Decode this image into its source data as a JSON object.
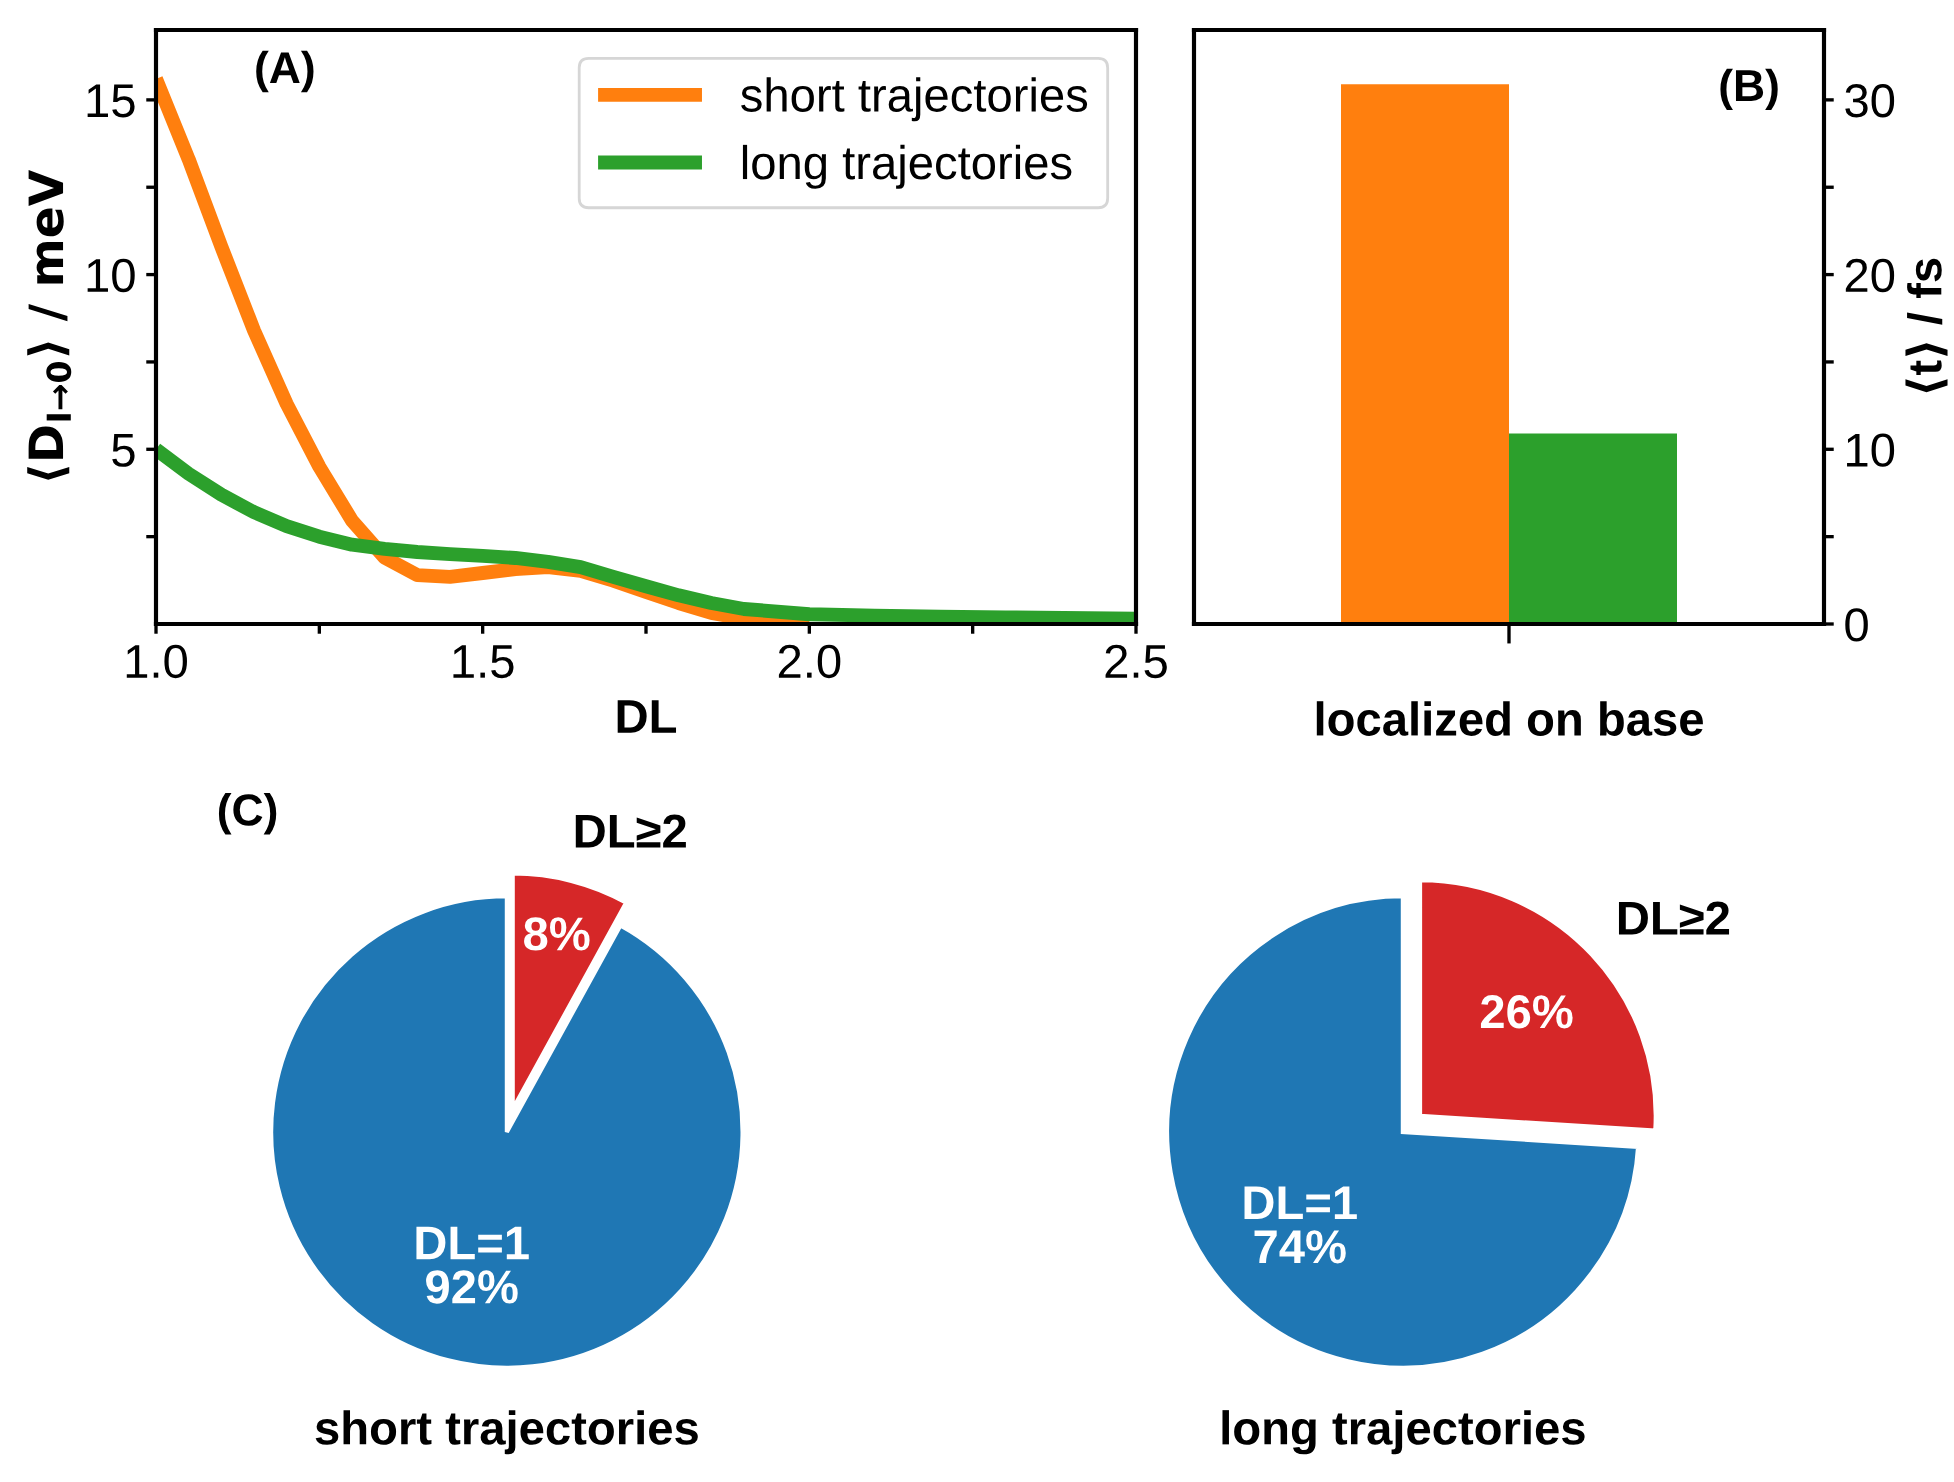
{
  "chart_data": [
    {
      "type": "line",
      "xlabel": "DL",
      "ylabel": "⟨D$_{I→0}$⟩ / meV",
      "annotations": [
        "(A)"
      ],
      "xlim": [
        1.0,
        2.5
      ],
      "ylim": [
        0,
        17
      ],
      "xticks": [
        {
          "value": 1.0,
          "label": "1.0"
        },
        {
          "value": 1.25,
          "label": null
        },
        {
          "value": 1.5,
          "label": "1.5"
        },
        {
          "value": 1.75,
          "label": null
        },
        {
          "value": 2.0,
          "label": "2.0"
        },
        {
          "value": 2.25,
          "label": null
        },
        {
          "value": 2.5,
          "label": "2.5"
        }
      ],
      "yticks": [
        {
          "value": 2.5,
          "label": null
        },
        5,
        {
          "value": 7.5,
          "label": null
        },
        10,
        {
          "value": 12.5,
          "label": null
        },
        15
      ],
      "x": [
        1.0,
        1.05,
        1.1,
        1.15,
        1.2,
        1.25,
        1.3,
        1.35,
        1.4,
        1.45,
        1.5,
        1.55,
        1.6,
        1.65,
        1.7,
        1.75,
        1.8,
        1.85,
        1.9,
        2.0,
        2.1,
        2.2,
        2.3,
        2.5
      ],
      "legend": "top right",
      "grid": false,
      "line_style": "solid",
      "marker": "none",
      "series": [
        {
          "name": "short trajectories",
          "color": "#ff7f0e",
          "values": [
            15.6,
            13.3,
            10.8,
            8.4,
            6.3,
            4.5,
            2.96,
            1.9,
            1.4,
            1.35,
            1.46,
            1.57,
            1.63,
            1.52,
            1.24,
            0.92,
            0.6,
            0.32,
            0.15,
            0.05,
            null,
            null,
            null,
            null
          ]
        },
        {
          "name": "long trajectories",
          "color": "#2ca02c",
          "values": [
            5.0,
            4.3,
            3.7,
            3.2,
            2.8,
            2.5,
            2.27,
            2.15,
            2.06,
            2.0,
            1.95,
            1.89,
            1.78,
            1.63,
            1.35,
            1.08,
            0.82,
            0.6,
            0.43,
            0.28,
            0.24,
            0.21,
            0.19,
            0.15
          ]
        }
      ]
    },
    {
      "type": "bar",
      "categories": [
        "localized on base"
      ],
      "y2label": "⟨t⟩ / fs",
      "annotations": [
        "(B)"
      ],
      "y2lim": [
        0,
        34
      ],
      "y2ticks": [
        0,
        {
          "value": 5,
          "label": null
        },
        10,
        {
          "value": 15,
          "label": null
        },
        20,
        {
          "value": 25,
          "label": null
        },
        30
      ],
      "grid": false,
      "series": [
        {
          "color": "#ff7f0e",
          "values": [
            30.9
          ],
          "axis": "y2"
        },
        {
          "color": "#2ca02c",
          "values": [
            10.9
          ],
          "axis": "y2"
        }
      ]
    },
    {
      "type": "pie",
      "title": "short trajectories",
      "annotations": [
        "(C)"
      ],
      "categories": [
        "DL≥2",
        "DL=1"
      ],
      "values": [
        8,
        92
      ],
      "value_labels": [
        "8%",
        "92%"
      ],
      "colors": [
        "#d62728",
        "#1f77b4"
      ]
    },
    {
      "type": "pie",
      "title": "long trajectories",
      "categories": [
        "DL≥2",
        "DL=1"
      ],
      "values": [
        26,
        74
      ],
      "value_labels": [
        "26%",
        "74%"
      ],
      "colors": [
        "#d62728",
        "#1f77b4"
      ]
    }
  ]
}
